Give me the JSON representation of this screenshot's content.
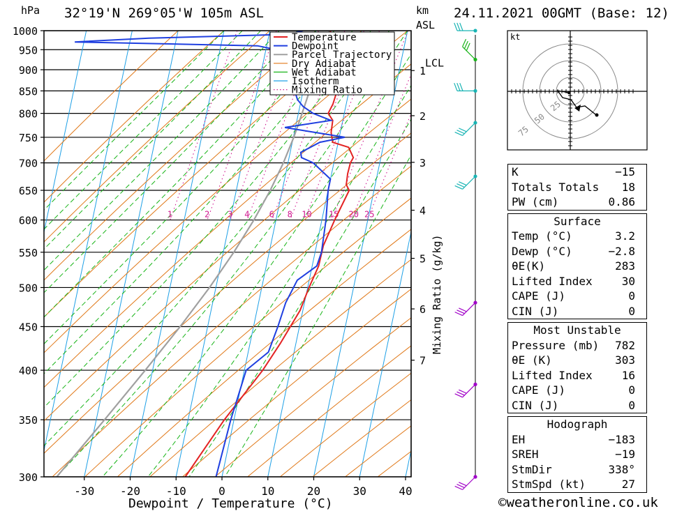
{
  "header": {
    "location": "32°19'N  269°05'W  105m  ASL",
    "hpa_unit": "hPa",
    "km_label": "km",
    "asl_label": "ASL",
    "date": "24.11.2021  00GMT  (Base: 12)"
  },
  "chart_data": {
    "type": "line",
    "title": "",
    "xlabel": "Dewpoint / Temperature (°C)",
    "ylabel": "hPa",
    "y2label": "Mixing Ratio (g/kg)",
    "xlim": [
      -40,
      40
    ],
    "ylim": [
      1000,
      300
    ],
    "y_scale": "log",
    "x_ticks": [
      -30,
      -20,
      -10,
      0,
      10,
      20,
      30,
      40
    ],
    "y_ticks": [
      300,
      350,
      400,
      450,
      500,
      550,
      600,
      650,
      700,
      750,
      800,
      850,
      900,
      950,
      1000
    ],
    "km_ticks": [
      {
        "km": 1,
        "p": 898
      },
      {
        "km": 2,
        "p": 795
      },
      {
        "km": 3,
        "p": 701
      },
      {
        "km": 4,
        "p": 616
      },
      {
        "km": 5,
        "p": 541
      },
      {
        "km": 6,
        "p": 472
      },
      {
        "km": 7,
        "p": 411
      }
    ],
    "lcl_label": "LCL",
    "lcl_p": 918,
    "mixing_ratio_labels": [
      "1",
      "2",
      "3",
      "4",
      "6",
      "8",
      "10",
      "15",
      "20",
      "25"
    ],
    "mixing_ratio_values": [
      1,
      2,
      3,
      4,
      6,
      8,
      10,
      15,
      20,
      25
    ],
    "legend": [
      "Temperature",
      "Dewpoint",
      "Parcel Trajectory",
      "Dry Adiabat",
      "Wet Adiabat",
      "Isotherm",
      "Mixing Ratio"
    ],
    "legend_position": "top-center",
    "colors": {
      "temperature": "#e32222",
      "dewpoint": "#1f3fe0",
      "parcel": "#a0a0a0",
      "dry_adiabat": "#e07818",
      "wet_adiabat": "#18b418",
      "isotherm": "#1ea0e6",
      "mixing_ratio": "#d01890"
    },
    "series": [
      {
        "name": "Temperature",
        "points": [
          [
            1000,
            3.2
          ],
          [
            980,
            3.6
          ],
          [
            960,
            5.2
          ],
          [
            950,
            7.0
          ],
          [
            940,
            7.7
          ],
          [
            920,
            7.5
          ],
          [
            900,
            7.5
          ],
          [
            850,
            7.4
          ],
          [
            820,
            7.1
          ],
          [
            800,
            6.5
          ],
          [
            785,
            7.8
          ],
          [
            760,
            8.0
          ],
          [
            740,
            8.8
          ],
          [
            730,
            12.5
          ],
          [
            710,
            14.0
          ],
          [
            700,
            13.6
          ],
          [
            680,
            13.5
          ],
          [
            660,
            13.7
          ],
          [
            650,
            14.6
          ],
          [
            600,
            12.8
          ],
          [
            560,
            11.5
          ],
          [
            530,
            11.4
          ],
          [
            500,
            10.3
          ],
          [
            470,
            9.4
          ],
          [
            430,
            6.6
          ],
          [
            400,
            4.0
          ],
          [
            350,
            -2.1
          ],
          [
            300,
            -8.0
          ]
        ]
      },
      {
        "name": "Dewpoint",
        "points": [
          [
            1000,
            -2.8
          ],
          [
            990,
            -6.0
          ],
          [
            980,
            -36.0
          ],
          [
            970,
            -52.0
          ],
          [
            960,
            -12.0
          ],
          [
            945,
            -5.5
          ],
          [
            930,
            -2.6
          ],
          [
            915,
            -4.0
          ],
          [
            900,
            -4.9
          ],
          [
            880,
            -7.2
          ],
          [
            860,
            -2.4
          ],
          [
            830,
            -0.8
          ],
          [
            815,
            0.7
          ],
          [
            800,
            3.2
          ],
          [
            785,
            7.4
          ],
          [
            770,
            -2.3
          ],
          [
            750,
            11.2
          ],
          [
            740,
            6.0
          ],
          [
            720,
            2.3
          ],
          [
            710,
            2.7
          ],
          [
            700,
            5.5
          ],
          [
            670,
            10.0
          ],
          [
            650,
            10.0
          ],
          [
            600,
            10.9
          ],
          [
            550,
            11.4
          ],
          [
            530,
            11.0
          ],
          [
            510,
            7.4
          ],
          [
            480,
            5.9
          ],
          [
            450,
            5.3
          ],
          [
            420,
            4.4
          ],
          [
            400,
            0.4
          ],
          [
            350,
            -0.7
          ],
          [
            300,
            -1.3
          ]
        ]
      },
      {
        "name": "Parcel Trajectory",
        "points": [
          [
            1000,
            3.0
          ],
          [
            950,
            2.5
          ],
          [
            918,
            2.1
          ],
          [
            850,
            1.4
          ],
          [
            800,
            0.8
          ],
          [
            750,
            0.1
          ],
          [
            700,
            -1.0
          ],
          [
            650,
            -2.6
          ],
          [
            600,
            -4.8
          ],
          [
            550,
            -7.7
          ],
          [
            500,
            -11.4
          ],
          [
            450,
            -16.0
          ],
          [
            400,
            -21.6
          ],
          [
            350,
            -28.2
          ],
          [
            300,
            -36.0
          ]
        ]
      }
    ]
  },
  "hodograph": {
    "unit": "kt",
    "ring_labels": [
      "25",
      "50",
      "75"
    ]
  },
  "wind_barbs": [
    {
      "p": 1000,
      "direction": "W",
      "color": "#19b4b4"
    },
    {
      "p": 925,
      "direction": "SW",
      "color": "#19b419"
    },
    {
      "p": 850,
      "direction": "W",
      "color": "#19b4b4"
    },
    {
      "p": 780,
      "direction": "NW",
      "color": "#19b4b4"
    },
    {
      "p": 675,
      "direction": "NW",
      "color": "#19b4b4"
    },
    {
      "p": 480,
      "direction": "NW",
      "color": "#a000c8"
    },
    {
      "p": 385,
      "direction": "NW",
      "color": "#a000c8"
    },
    {
      "p": 300,
      "direction": "NW",
      "color": "#a000c8"
    }
  ],
  "indices": [
    {
      "label": "K",
      "value": "−15"
    },
    {
      "label": "Totals Totals",
      "value": "18"
    },
    {
      "label": "PW (cm)",
      "value": "0.86"
    }
  ],
  "surface": {
    "title": "Surface",
    "rows": [
      {
        "label": "Temp (°C)",
        "value": "3.2"
      },
      {
        "label": "Dewp (°C)",
        "value": "−2.8"
      },
      {
        "label": "θE(K)",
        "value": "283"
      },
      {
        "label": "Lifted Index",
        "value": "30"
      },
      {
        "label": "CAPE (J)",
        "value": "0"
      },
      {
        "label": "CIN (J)",
        "value": "0"
      }
    ]
  },
  "most_unstable": {
    "title": "Most Unstable",
    "rows": [
      {
        "label": "Pressure (mb)",
        "value": "782"
      },
      {
        "label": "θE (K)",
        "value": "303"
      },
      {
        "label": "Lifted Index",
        "value": "16"
      },
      {
        "label": "CAPE (J)",
        "value": "0"
      },
      {
        "label": "CIN (J)",
        "value": "0"
      }
    ]
  },
  "hodograph_box": {
    "title": "Hodograph",
    "rows": [
      {
        "label": "EH",
        "value": "−183"
      },
      {
        "label": "SREH",
        "value": "−19"
      },
      {
        "label": "StmDir",
        "value": "338°"
      },
      {
        "label": "StmSpd (kt)",
        "value": "27"
      }
    ]
  },
  "credit": "©weatheronline.co.uk"
}
